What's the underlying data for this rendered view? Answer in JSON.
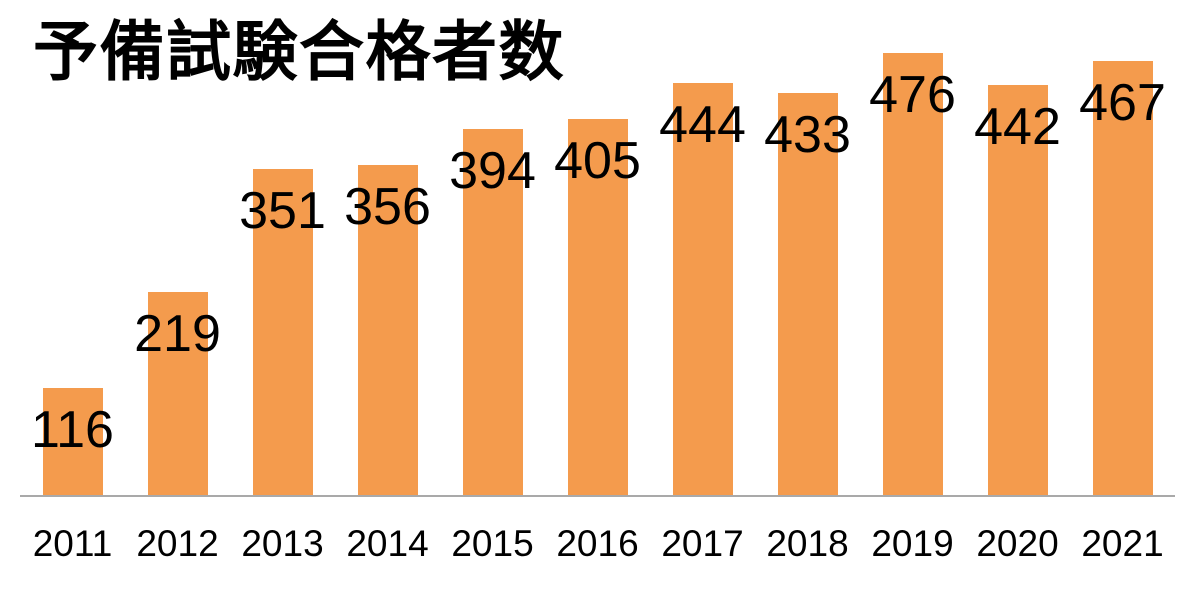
{
  "header": {
    "title": "予備試験合格者数"
  },
  "chart_data": {
    "type": "bar",
    "title": "予備試験合格者数",
    "categories": [
      "2011",
      "2012",
      "2013",
      "2014",
      "2015",
      "2016",
      "2017",
      "2018",
      "2019",
      "2020",
      "2021"
    ],
    "values": [
      116,
      219,
      351,
      356,
      394,
      405,
      444,
      433,
      476,
      442,
      467
    ],
    "xlabel": "",
    "ylabel": "",
    "ylim": [
      0,
      533
    ],
    "grid": false,
    "legend": false,
    "data_label_position": "inside-end",
    "bar_color": "#F49B4D",
    "axis_line_color": "#A9A9A9",
    "text_color": "#000000"
  }
}
